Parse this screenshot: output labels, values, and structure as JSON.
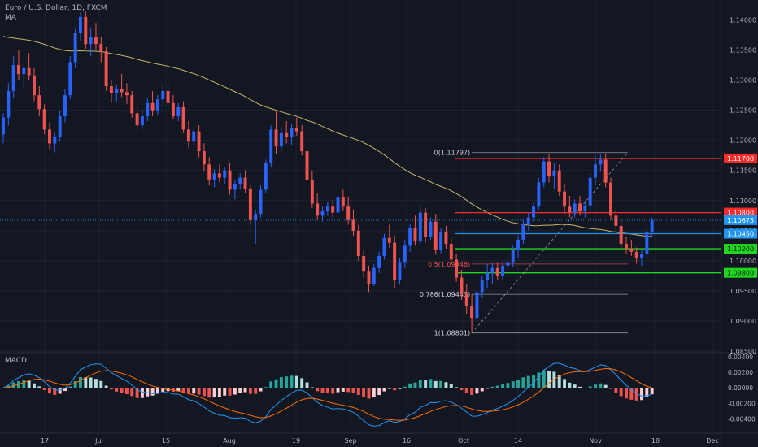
{
  "header": {
    "title": "Euro / U.S. Dollar, 1D, FXCM",
    "indicator": "MA",
    "macd_label": "MACD"
  },
  "colors": {
    "background": "#131722",
    "up": "#2962ff",
    "down": "#ef5350",
    "ma": "#c9b46a",
    "resistance": "#ff2a2a",
    "support": "#1fd61f",
    "current": "#2196f3",
    "fib": "#b2b5be",
    "macd_line": "#2196f3",
    "signal_line": "#ff6d00",
    "hist_pos_strong": "#26a69a",
    "hist_pos_weak": "#b2dfdb",
    "hist_neg_strong": "#ef5350",
    "hist_neg_weak": "#ffcdd2"
  },
  "chart_data": {
    "type": "candlestick",
    "symbol": "EURUSD",
    "timeframe": "1D",
    "price_axis": {
      "ylim": [
        1.085,
        1.1425
      ],
      "ticks": [
        "1.14000",
        "1.13500",
        "1.13000",
        "1.12500",
        "1.12000",
        "1.11500",
        "1.11000",
        "1.10500",
        "1.10000",
        "1.09500",
        "1.09000",
        "1.08500"
      ]
    },
    "time_axis": {
      "labels": [
        "17",
        "Jul",
        "15",
        "Aug",
        "19",
        "Sep",
        "16",
        "Oct",
        "14",
        "Nov",
        "18",
        "Dec"
      ]
    },
    "levels": [
      {
        "price": 1.117,
        "label": "1.11700",
        "kind": "resistance"
      },
      {
        "price": 1.108,
        "label": "1.10800",
        "kind": "resistance"
      },
      {
        "price": 1.1045,
        "label": "1.10450",
        "kind": "current"
      },
      {
        "price": 1.102,
        "label": "1.10200",
        "kind": "support"
      },
      {
        "price": 1.098,
        "label": "1.09800",
        "kind": "support"
      }
    ],
    "last_price": {
      "price": 1.10675,
      "label": "1.10675"
    },
    "fib_levels": [
      {
        "price": 1.11797,
        "label": "0(1.11797)"
      },
      {
        "price": 1.09946,
        "label": "0.5(1.09946)"
      },
      {
        "price": 1.09443,
        "label": "0.786(1.09443)"
      },
      {
        "price": 1.08801,
        "label": "1(1.08801)"
      }
    ],
    "candles": [
      {
        "o": 1.121,
        "h": 1.1245,
        "l": 1.1195,
        "c": 1.1238
      },
      {
        "o": 1.1238,
        "h": 1.1295,
        "l": 1.1225,
        "c": 1.1282
      },
      {
        "o": 1.1282,
        "h": 1.134,
        "l": 1.127,
        "c": 1.1325
      },
      {
        "o": 1.1325,
        "h": 1.135,
        "l": 1.13,
        "c": 1.131
      },
      {
        "o": 1.131,
        "h": 1.133,
        "l": 1.1285,
        "c": 1.132
      },
      {
        "o": 1.132,
        "h": 1.1345,
        "l": 1.13,
        "c": 1.1308
      },
      {
        "o": 1.1308,
        "h": 1.132,
        "l": 1.1265,
        "c": 1.1275
      },
      {
        "o": 1.1275,
        "h": 1.129,
        "l": 1.124,
        "c": 1.1252
      },
      {
        "o": 1.1252,
        "h": 1.126,
        "l": 1.121,
        "c": 1.1218
      },
      {
        "o": 1.1218,
        "h": 1.123,
        "l": 1.1185,
        "c": 1.1195
      },
      {
        "o": 1.1195,
        "h": 1.1212,
        "l": 1.118,
        "c": 1.1205
      },
      {
        "o": 1.1205,
        "h": 1.125,
        "l": 1.1198,
        "c": 1.124
      },
      {
        "o": 1.124,
        "h": 1.1285,
        "l": 1.123,
        "c": 1.1275
      },
      {
        "o": 1.1275,
        "h": 1.134,
        "l": 1.1268,
        "c": 1.133
      },
      {
        "o": 1.133,
        "h": 1.1385,
        "l": 1.132,
        "c": 1.1378
      },
      {
        "o": 1.1378,
        "h": 1.1412,
        "l": 1.1365,
        "c": 1.1405
      },
      {
        "o": 1.1405,
        "h": 1.1415,
        "l": 1.1352,
        "c": 1.136
      },
      {
        "o": 1.136,
        "h": 1.1388,
        "l": 1.134,
        "c": 1.1372
      },
      {
        "o": 1.1372,
        "h": 1.1395,
        "l": 1.135,
        "c": 1.136
      },
      {
        "o": 1.136,
        "h": 1.1372,
        "l": 1.133,
        "c": 1.1348
      },
      {
        "o": 1.1348,
        "h": 1.1355,
        "l": 1.1282,
        "c": 1.129
      },
      {
        "o": 1.129,
        "h": 1.13,
        "l": 1.1262,
        "c": 1.1278
      },
      {
        "o": 1.1278,
        "h": 1.1292,
        "l": 1.1265,
        "c": 1.1285
      },
      {
        "o": 1.1285,
        "h": 1.131,
        "l": 1.1272,
        "c": 1.128
      },
      {
        "o": 1.128,
        "h": 1.1295,
        "l": 1.126,
        "c": 1.1275
      },
      {
        "o": 1.1275,
        "h": 1.1282,
        "l": 1.1238,
        "c": 1.1245
      },
      {
        "o": 1.1245,
        "h": 1.126,
        "l": 1.1215,
        "c": 1.1225
      },
      {
        "o": 1.1225,
        "h": 1.125,
        "l": 1.1218,
        "c": 1.124
      },
      {
        "o": 1.124,
        "h": 1.127,
        "l": 1.1232,
        "c": 1.1262
      },
      {
        "o": 1.1262,
        "h": 1.1282,
        "l": 1.124,
        "c": 1.125
      },
      {
        "o": 1.125,
        "h": 1.1275,
        "l": 1.1242,
        "c": 1.1268
      },
      {
        "o": 1.1268,
        "h": 1.1292,
        "l": 1.1255,
        "c": 1.1282
      },
      {
        "o": 1.1282,
        "h": 1.1295,
        "l": 1.1255,
        "c": 1.1262
      },
      {
        "o": 1.1262,
        "h": 1.1275,
        "l": 1.1235,
        "c": 1.124
      },
      {
        "o": 1.124,
        "h": 1.1262,
        "l": 1.1232,
        "c": 1.1255
      },
      {
        "o": 1.1255,
        "h": 1.1265,
        "l": 1.1212,
        "c": 1.1218
      },
      {
        "o": 1.1218,
        "h": 1.1232,
        "l": 1.1188,
        "c": 1.1198
      },
      {
        "o": 1.1198,
        "h": 1.1222,
        "l": 1.1192,
        "c": 1.1215
      },
      {
        "o": 1.1215,
        "h": 1.1225,
        "l": 1.1172,
        "c": 1.1182
      },
      {
        "o": 1.1182,
        "h": 1.1195,
        "l": 1.115,
        "c": 1.116
      },
      {
        "o": 1.116,
        "h": 1.1172,
        "l": 1.1125,
        "c": 1.1135
      },
      {
        "o": 1.1135,
        "h": 1.1152,
        "l": 1.1122,
        "c": 1.1145
      },
      {
        "o": 1.1145,
        "h": 1.116,
        "l": 1.113,
        "c": 1.1138
      },
      {
        "o": 1.1138,
        "h": 1.1155,
        "l": 1.1128,
        "c": 1.115
      },
      {
        "o": 1.115,
        "h": 1.1162,
        "l": 1.111,
        "c": 1.1118
      },
      {
        "o": 1.1118,
        "h": 1.1135,
        "l": 1.1102,
        "c": 1.1128
      },
      {
        "o": 1.1128,
        "h": 1.1145,
        "l": 1.1118,
        "c": 1.1138
      },
      {
        "o": 1.1138,
        "h": 1.115,
        "l": 1.1112,
        "c": 1.112
      },
      {
        "o": 1.112,
        "h": 1.1125,
        "l": 1.106,
        "c": 1.1068
      },
      {
        "o": 1.1068,
        "h": 1.1085,
        "l": 1.1028,
        "c": 1.1078
      },
      {
        "o": 1.1078,
        "h": 1.1125,
        "l": 1.1072,
        "c": 1.1118
      },
      {
        "o": 1.1118,
        "h": 1.1168,
        "l": 1.1112,
        "c": 1.1162
      },
      {
        "o": 1.1162,
        "h": 1.1225,
        "l": 1.1155,
        "c": 1.1218
      },
      {
        "o": 1.1218,
        "h": 1.125,
        "l": 1.1178,
        "c": 1.119
      },
      {
        "o": 1.119,
        "h": 1.1222,
        "l": 1.1182,
        "c": 1.1212
      },
      {
        "o": 1.1212,
        "h": 1.1232,
        "l": 1.1195,
        "c": 1.1205
      },
      {
        "o": 1.1205,
        "h": 1.1228,
        "l": 1.1192,
        "c": 1.122
      },
      {
        "o": 1.122,
        "h": 1.1238,
        "l": 1.1208,
        "c": 1.1215
      },
      {
        "o": 1.1215,
        "h": 1.1225,
        "l": 1.1175,
        "c": 1.1182
      },
      {
        "o": 1.1182,
        "h": 1.1198,
        "l": 1.1128,
        "c": 1.1135
      },
      {
        "o": 1.1135,
        "h": 1.115,
        "l": 1.1088,
        "c": 1.1095
      },
      {
        "o": 1.1095,
        "h": 1.1112,
        "l": 1.1068,
        "c": 1.1075
      },
      {
        "o": 1.1075,
        "h": 1.109,
        "l": 1.1065,
        "c": 1.1082
      },
      {
        "o": 1.1082,
        "h": 1.1098,
        "l": 1.1075,
        "c": 1.109
      },
      {
        "o": 1.109,
        "h": 1.1102,
        "l": 1.1072,
        "c": 1.108
      },
      {
        "o": 1.108,
        "h": 1.111,
        "l": 1.1075,
        "c": 1.1105
      },
      {
        "o": 1.1105,
        "h": 1.1118,
        "l": 1.1082,
        "c": 1.109
      },
      {
        "o": 1.109,
        "h": 1.1105,
        "l": 1.106,
        "c": 1.1068
      },
      {
        "o": 1.1068,
        "h": 1.1085,
        "l": 1.1042,
        "c": 1.105
      },
      {
        "o": 1.105,
        "h": 1.106,
        "l": 1.1,
        "c": 1.1008
      },
      {
        "o": 1.1008,
        "h": 1.1018,
        "l": 1.0972,
        "c": 1.0982
      },
      {
        "o": 1.0982,
        "h": 1.0992,
        "l": 1.0948,
        "c": 1.0962
      },
      {
        "o": 1.0962,
        "h": 1.0995,
        "l": 1.0958,
        "c": 1.0988
      },
      {
        "o": 1.0988,
        "h": 1.1015,
        "l": 1.098,
        "c": 1.1008
      },
      {
        "o": 1.1008,
        "h": 1.1045,
        "l": 1.1002,
        "c": 1.1038
      },
      {
        "o": 1.1038,
        "h": 1.106,
        "l": 1.1022,
        "c": 1.103
      },
      {
        "o": 1.103,
        "h": 1.1042,
        "l": 1.0955,
        "c": 1.0968
      },
      {
        "o": 1.0968,
        "h": 1.1005,
        "l": 1.096,
        "c": 1.0998
      },
      {
        "o": 1.0998,
        "h": 1.1035,
        "l": 1.0988,
        "c": 1.1025
      },
      {
        "o": 1.1025,
        "h": 1.1062,
        "l": 1.1015,
        "c": 1.1055
      },
      {
        "o": 1.1055,
        "h": 1.1075,
        "l": 1.1025,
        "c": 1.1032
      },
      {
        "o": 1.1032,
        "h": 1.1092,
        "l": 1.1025,
        "c": 1.108
      },
      {
        "o": 1.108,
        "h": 1.1088,
        "l": 1.103,
        "c": 1.104
      },
      {
        "o": 1.104,
        "h": 1.1072,
        "l": 1.1035,
        "c": 1.1065
      },
      {
        "o": 1.1065,
        "h": 1.1078,
        "l": 1.101,
        "c": 1.1018
      },
      {
        "o": 1.1018,
        "h": 1.1055,
        "l": 1.1012,
        "c": 1.1048
      },
      {
        "o": 1.1048,
        "h": 1.1058,
        "l": 1.102,
        "c": 1.1028
      },
      {
        "o": 1.1028,
        "h": 1.1038,
        "l": 1.0995,
        "c": 1.1002
      },
      {
        "o": 1.1002,
        "h": 1.1012,
        "l": 1.0965,
        "c": 1.0972
      },
      {
        "o": 1.0972,
        "h": 1.0985,
        "l": 1.0935,
        "c": 1.0945
      },
      {
        "o": 1.0945,
        "h": 1.0962,
        "l": 1.0912,
        "c": 1.0925
      },
      {
        "o": 1.0925,
        "h": 1.0945,
        "l": 1.088,
        "c": 1.0905
      },
      {
        "o": 1.0905,
        "h": 1.0955,
        "l": 1.0898,
        "c": 1.0948
      },
      {
        "o": 1.0948,
        "h": 1.0975,
        "l": 1.0938,
        "c": 1.0968
      },
      {
        "o": 1.0968,
        "h": 1.0995,
        "l": 1.0955,
        "c": 1.098
      },
      {
        "o": 1.098,
        "h": 1.0998,
        "l": 1.0962,
        "c": 1.0988
      },
      {
        "o": 1.0988,
        "h": 1.0998,
        "l": 1.0968,
        "c": 1.0975
      },
      {
        "o": 1.0975,
        "h": 1.1,
        "l": 1.0968,
        "c": 1.0992
      },
      {
        "o": 1.0992,
        "h": 1.1005,
        "l": 1.0978,
        "c": 1.0998
      },
      {
        "o": 1.0998,
        "h": 1.1025,
        "l": 1.099,
        "c": 1.1018
      },
      {
        "o": 1.1018,
        "h": 1.1042,
        "l": 1.1005,
        "c": 1.1035
      },
      {
        "o": 1.1035,
        "h": 1.1068,
        "l": 1.1028,
        "c": 1.1062
      },
      {
        "o": 1.1062,
        "h": 1.108,
        "l": 1.105,
        "c": 1.1072
      },
      {
        "o": 1.1072,
        "h": 1.1098,
        "l": 1.1065,
        "c": 1.109
      },
      {
        "o": 1.109,
        "h": 1.1138,
        "l": 1.1085,
        "c": 1.113
      },
      {
        "o": 1.113,
        "h": 1.1172,
        "l": 1.1122,
        "c": 1.1165
      },
      {
        "o": 1.1165,
        "h": 1.1178,
        "l": 1.113,
        "c": 1.114
      },
      {
        "o": 1.114,
        "h": 1.1162,
        "l": 1.112,
        "c": 1.115
      },
      {
        "o": 1.115,
        "h": 1.116,
        "l": 1.1108,
        "c": 1.1115
      },
      {
        "o": 1.1115,
        "h": 1.1128,
        "l": 1.1078,
        "c": 1.109
      },
      {
        "o": 1.109,
        "h": 1.1108,
        "l": 1.1072,
        "c": 1.108
      },
      {
        "o": 1.108,
        "h": 1.1102,
        "l": 1.1072,
        "c": 1.1095
      },
      {
        "o": 1.1095,
        "h": 1.1108,
        "l": 1.1075,
        "c": 1.1082
      },
      {
        "o": 1.1082,
        "h": 1.11,
        "l": 1.1072,
        "c": 1.1092
      },
      {
        "o": 1.1092,
        "h": 1.1145,
        "l": 1.1085,
        "c": 1.1138
      },
      {
        "o": 1.1138,
        "h": 1.1175,
        "l": 1.1125,
        "c": 1.116
      },
      {
        "o": 1.116,
        "h": 1.1178,
        "l": 1.1148,
        "c": 1.1168
      },
      {
        "o": 1.1168,
        "h": 1.1178,
        "l": 1.1122,
        "c": 1.113
      },
      {
        "o": 1.113,
        "h": 1.1138,
        "l": 1.1068,
        "c": 1.1075
      },
      {
        "o": 1.1075,
        "h": 1.1085,
        "l": 1.1048,
        "c": 1.1058
      },
      {
        "o": 1.1058,
        "h": 1.1068,
        "l": 1.1018,
        "c": 1.1028
      },
      {
        "o": 1.1028,
        "h": 1.104,
        "l": 1.1012,
        "c": 1.102
      },
      {
        "o": 1.102,
        "h": 1.1035,
        "l": 1.1008,
        "c": 1.1015
      },
      {
        "o": 1.1015,
        "h": 1.1022,
        "l": 1.0995,
        "c": 1.1005
      },
      {
        "o": 1.1005,
        "h": 1.1018,
        "l": 1.0992,
        "c": 1.1012
      },
      {
        "o": 1.1012,
        "h": 1.1055,
        "l": 1.1005,
        "c": 1.1048
      },
      {
        "o": 1.1048,
        "h": 1.1072,
        "l": 1.104,
        "c": 1.1067
      }
    ],
    "macd_axis": {
      "ylim": [
        -0.0055,
        0.0043
      ],
      "ticks": [
        "0.00400",
        "0.00200",
        "0.00000",
        "-0.00200",
        "-0.00400"
      ]
    }
  }
}
